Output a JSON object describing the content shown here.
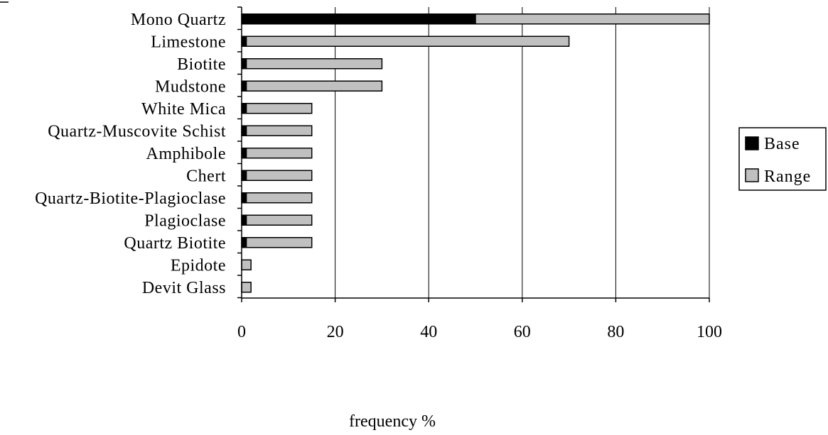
{
  "colors": {
    "base": "#000000",
    "range": "#c0c0c0",
    "grid": "#000000",
    "background": "#ffffff"
  },
  "chart_data": {
    "type": "bar",
    "orientation": "horizontal",
    "stacked": true,
    "categories": [
      "Mono Quartz",
      "Limestone",
      "Biotite",
      "Mudstone",
      "White Mica",
      "Quartz-Muscovite Schist",
      "Amphibole",
      "Chert",
      "Quartz-Biotite-Plagioclase",
      "Plagioclase",
      "Quartz Biotite",
      "Epidote",
      "Devit Glass"
    ],
    "series": [
      {
        "name": "Base",
        "values": [
          50,
          1,
          1,
          1,
          1,
          1,
          1,
          1,
          1,
          1,
          1,
          0,
          0
        ]
      },
      {
        "name": "Range",
        "values": [
          50,
          69,
          29,
          29,
          14,
          14,
          14,
          14,
          14,
          14,
          14,
          2,
          2
        ]
      }
    ],
    "xlabel": "frequency %",
    "xlim": [
      0,
      100
    ],
    "xticks": [
      0,
      20,
      40,
      60,
      80,
      100
    ],
    "grid": "vertical",
    "legend": "right"
  }
}
